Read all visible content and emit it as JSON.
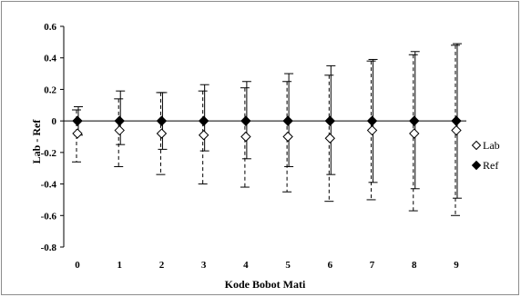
{
  "chart_data": {
    "type": "scatter",
    "xlabel": "Kode Bobot Mati",
    "ylabel": "Lab - Ref",
    "x": [
      0,
      1,
      2,
      3,
      4,
      5,
      6,
      7,
      8,
      9
    ],
    "xlim": [
      0,
      9
    ],
    "ylim": [
      -0.8,
      0.6
    ],
    "yticks": [
      0.6,
      0.4,
      0.2,
      0,
      -0.2,
      -0.4,
      -0.6,
      -0.8
    ],
    "ytick_labels": [
      "0.6",
      "0.4",
      "0.2",
      "0",
      "-0.2",
      "-0.4",
      "-0.6",
      "-0.8"
    ],
    "xtick_labels": [
      "0",
      "1",
      "2",
      "3",
      "4",
      "5",
      "6",
      "7",
      "8",
      "9"
    ],
    "grid": false,
    "legend_position": "right",
    "series": [
      {
        "name": "Lab",
        "marker": "hollow-diamond",
        "error_style": "dashed",
        "values": [
          -0.08,
          -0.06,
          -0.08,
          -0.09,
          -0.1,
          -0.1,
          -0.11,
          -0.06,
          -0.08,
          -0.06
        ],
        "err_upper": [
          0.07,
          0.14,
          0.18,
          0.19,
          0.21,
          0.25,
          0.29,
          0.38,
          0.42,
          0.48
        ],
        "err_lower": [
          -0.26,
          -0.29,
          -0.34,
          -0.4,
          -0.42,
          -0.45,
          -0.51,
          -0.5,
          -0.57,
          -0.6
        ]
      },
      {
        "name": "Ref",
        "marker": "filled-diamond",
        "error_style": "solid",
        "values": [
          0,
          0,
          0,
          0,
          0,
          0,
          0,
          0,
          0,
          0
        ],
        "err_upper": [
          0.09,
          0.19,
          0.18,
          0.23,
          0.25,
          0.3,
          0.35,
          0.39,
          0.44,
          0.49
        ],
        "err_lower": [
          -0.09,
          -0.15,
          -0.18,
          -0.19,
          -0.24,
          -0.29,
          -0.34,
          -0.39,
          -0.43,
          -0.49
        ]
      }
    ]
  }
}
